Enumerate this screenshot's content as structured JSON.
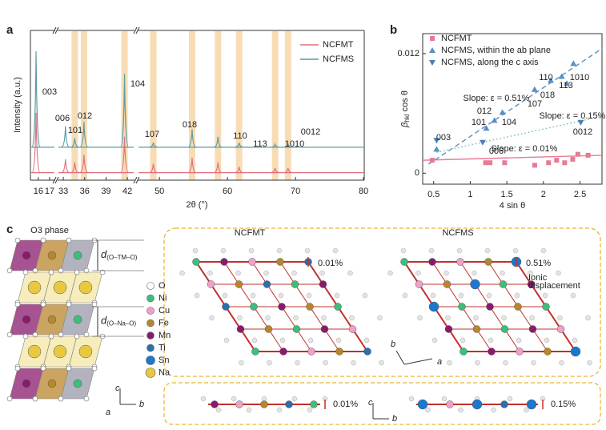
{
  "panel_labels": [
    "a",
    "b",
    "c"
  ],
  "chart_data": [
    {
      "type": "line",
      "y_label": "Intensity (a.u.)",
      "x_label": "2θ (°)",
      "categories": [
        "003",
        "006",
        "101",
        "012",
        "104",
        "107",
        "018",
        "110",
        "113",
        "1010",
        "0012"
      ],
      "x": [
        15.8,
        33.3,
        34.6,
        35.9,
        41.6,
        49.1,
        54.8,
        58.6,
        61.7,
        67.0,
        68.9
      ],
      "x_segments": [
        [
          15.3,
          17.5
        ],
        [
          32.2,
          43
        ],
        [
          46.8,
          80.1
        ]
      ],
      "xticks": [
        16,
        17,
        33,
        36,
        39,
        42,
        50,
        60,
        70,
        80
      ],
      "ylim": [
        0,
        100
      ],
      "highlight_x": [
        34.6,
        35.9,
        41.6,
        49.1,
        54.8,
        58.6,
        61.7,
        67.0,
        68.9
      ],
      "highlight_color": "#f8dcb4",
      "legend": "upper right",
      "series": [
        {
          "name": "NCFMT",
          "color": "#e07080",
          "baseline": 5,
          "values": [
            40,
            9,
            7,
            12,
            24,
            6,
            10,
            7,
            4,
            3,
            3
          ]
        },
        {
          "name": "NCFMS",
          "color": "#5b9aa0",
          "baseline": 22,
          "values": [
            64,
            14,
            6,
            17,
            49,
            3,
            12,
            7,
            3,
            2,
            2
          ]
        }
      ]
    },
    {
      "type": "scatter",
      "y_label": {
        "symbol": "β",
        "sub": "hkl",
        "rest": " cos θ"
      },
      "x_label": "4 sin θ",
      "xlim": [
        0.35,
        2.8
      ],
      "xticks": [
        0.5,
        1.0,
        1.5,
        2.0,
        2.5
      ],
      "ylim": [
        -0.0011,
        0.014
      ],
      "yticks": [
        0,
        0.012
      ],
      "legend": "upper left",
      "series": [
        {
          "name": "NCFMT",
          "color": "#e87a94",
          "marker": "square",
          "x": [
            0.48,
            1.21,
            1.27,
            1.47,
            1.88,
            2.07,
            2.18,
            2.29,
            2.4,
            2.47,
            2.61
          ],
          "values": [
            0.0013,
            0.00105,
            0.00105,
            0.00105,
            0.0008,
            0.00105,
            0.0013,
            0.00105,
            0.0014,
            0.0019,
            0.0018
          ]
        },
        {
          "name": "NCFMS, within the ab plane",
          "color": "#5a8fc0",
          "marker": "triangle-up",
          "x": [
            0.54,
            1.22,
            1.33,
            1.44,
            1.88,
            2.1,
            2.25,
            2.32,
            2.41
          ],
          "values": [
            0.0024,
            0.0045,
            0.0053,
            0.0061,
            0.0084,
            0.0093,
            0.0097,
            0.009,
            0.011
          ]
        },
        {
          "name": "NCFMS, along the c axis",
          "color": "#4a7fb8",
          "marker": "triangle-down",
          "x": [
            0.54,
            1.17,
            2.51
          ],
          "values": [
            0.0033,
            0.0031,
            0.0051
          ]
        }
      ],
      "fit_lines": [
        {
          "label": "Slope: ε = 0.01%",
          "color": "#e87a94",
          "style": "solid",
          "x": [
            0.35,
            2.8
          ],
          "values": [
            0.0013,
            0.0018
          ]
        },
        {
          "label": "Slope: ε = 0.51%",
          "color": "#5a8fc0",
          "style": "dashed",
          "x": [
            0.43,
            2.8
          ],
          "values": [
            0.0009,
            0.0125
          ]
        },
        {
          "label": "Slope: ε = 0.15%",
          "color": "#6abbb0",
          "style": "dotted",
          "x": [
            0.54,
            2.8
          ],
          "values": [
            0.0021,
            0.0057
          ]
        }
      ],
      "point_labels": [
        "003",
        "006",
        "101",
        "012",
        "104",
        "107",
        "018",
        "110",
        "113",
        "1010",
        "0012"
      ]
    }
  ],
  "diagram": {
    "title": "O3 phase",
    "d_labels": [
      {
        "main": "d",
        "sub": "(O–TM–O)"
      },
      {
        "main": "d",
        "sub": "(O–Na–O)"
      }
    ],
    "elements": [
      {
        "name": "O",
        "color": "#ffffff"
      },
      {
        "name": "Ni",
        "color": "#3dbe7a"
      },
      {
        "name": "Cu",
        "color": "#f0a0c8"
      },
      {
        "name": "Fe",
        "color": "#b8862b"
      },
      {
        "name": "Mn",
        "color": "#8a1a6e"
      },
      {
        "name": "Ti",
        "color": "#2a6fb0"
      },
      {
        "name": "Sn",
        "color": "#1a78d0"
      },
      {
        "name": "Na",
        "color": "#e8c840"
      }
    ],
    "structures": [
      {
        "name": "NCFMT",
        "strain": "0.01%"
      },
      {
        "name": "NCFMS",
        "strain": "0.51%",
        "note": [
          "Ionic",
          "displacement"
        ]
      }
    ],
    "side_strains": [
      "0.01%",
      "0.15%"
    ],
    "axes": [
      "a",
      "b",
      "c"
    ]
  }
}
